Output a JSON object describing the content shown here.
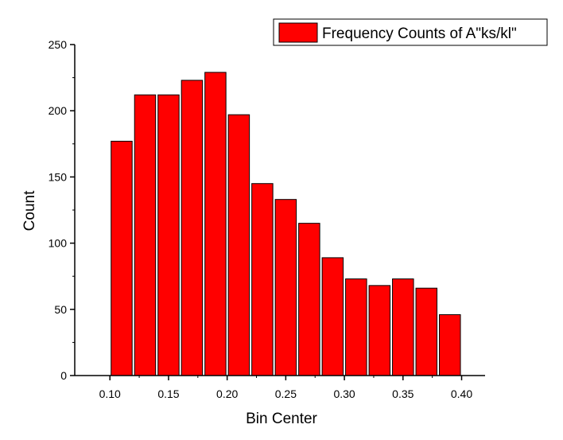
{
  "chart_data": {
    "type": "bar",
    "xlabel": "Bin Center",
    "ylabel": "Count",
    "xlim": [
      0.07,
      0.42
    ],
    "ylim": [
      0,
      250
    ],
    "x_ticks": [
      0.1,
      0.15,
      0.2,
      0.25,
      0.3,
      0.35,
      0.4
    ],
    "x_tick_labels": [
      "0.10",
      "0.15",
      "0.20",
      "0.25",
      "0.30",
      "0.35",
      "0.40"
    ],
    "y_ticks": [
      0,
      50,
      100,
      150,
      200,
      250
    ],
    "y_tick_labels": [
      "0",
      "50",
      "100",
      "150",
      "200",
      "250"
    ],
    "bin_width": 0.02,
    "grid": false,
    "legend_position": "top-right",
    "series": [
      {
        "name": "Frequency Counts of A\"ks/kl\"",
        "color": "#ff0000",
        "x": [
          0.11,
          0.13,
          0.15,
          0.17,
          0.19,
          0.21,
          0.23,
          0.25,
          0.27,
          0.29,
          0.31,
          0.33,
          0.35,
          0.37,
          0.39
        ],
        "values": [
          177,
          212,
          212,
          223,
          229,
          197,
          145,
          133,
          115,
          89,
          73,
          68,
          73,
          66,
          46
        ]
      }
    ]
  }
}
